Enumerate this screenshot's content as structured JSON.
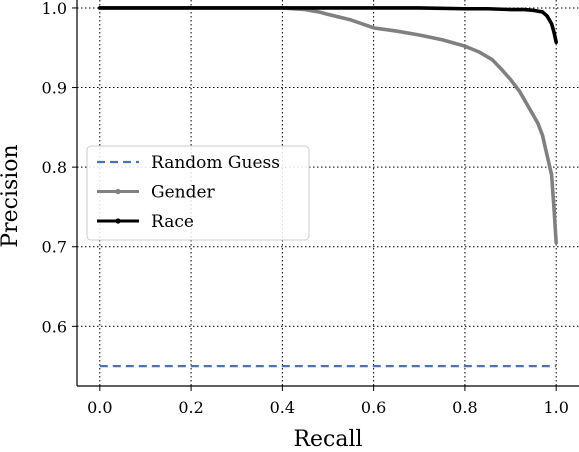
{
  "chart_data": {
    "type": "line",
    "xlabel": "Recall",
    "ylabel": "Precision",
    "xlim": [
      -0.05,
      1.05
    ],
    "ylim": [
      0.525,
      1.01
    ],
    "xticks": [
      0.0,
      0.2,
      0.4,
      0.6,
      0.8,
      1.0
    ],
    "xtick_labels": [
      "0.0",
      "0.2",
      "0.4",
      "0.6",
      "0.8",
      "1.0"
    ],
    "yticks": [
      0.6,
      0.7,
      0.8,
      0.9,
      1.0
    ],
    "ytick_labels": [
      "0.6",
      "0.7",
      "0.8",
      "0.9",
      "1.0"
    ],
    "grid": true,
    "grid_style": "dotted",
    "legend_position": "center-left",
    "series": [
      {
        "name": "Random Guess",
        "style": "dashed",
        "color": "#4c72b0",
        "x": [
          0.0,
          1.0
        ],
        "y": [
          0.55,
          0.55
        ]
      },
      {
        "name": "Gender",
        "style": "solid-marker",
        "color": "#808080",
        "x": [
          0.0,
          0.1,
          0.2,
          0.3,
          0.4,
          0.45,
          0.48,
          0.5,
          0.55,
          0.6,
          0.65,
          0.7,
          0.75,
          0.8,
          0.83,
          0.86,
          0.88,
          0.9,
          0.92,
          0.94,
          0.96,
          0.97,
          0.98,
          0.99,
          0.995,
          1.0
        ],
        "y": [
          1.0,
          1.0,
          1.0,
          1.0,
          1.0,
          0.998,
          0.995,
          0.992,
          0.985,
          0.975,
          0.971,
          0.966,
          0.96,
          0.952,
          0.945,
          0.935,
          0.923,
          0.91,
          0.895,
          0.875,
          0.855,
          0.84,
          0.815,
          0.79,
          0.75,
          0.705
        ]
      },
      {
        "name": "Race",
        "style": "solid-marker",
        "color": "#000000",
        "x": [
          0.0,
          0.1,
          0.2,
          0.3,
          0.4,
          0.5,
          0.6,
          0.7,
          0.8,
          0.85,
          0.9,
          0.93,
          0.95,
          0.97,
          0.98,
          0.99,
          0.995,
          1.0
        ],
        "y": [
          1.0,
          1.0,
          1.0,
          1.0,
          1.0,
          1.0,
          1.0,
          1.0,
          0.999,
          0.999,
          0.998,
          0.998,
          0.997,
          0.995,
          0.99,
          0.98,
          0.97,
          0.957
        ]
      }
    ]
  }
}
